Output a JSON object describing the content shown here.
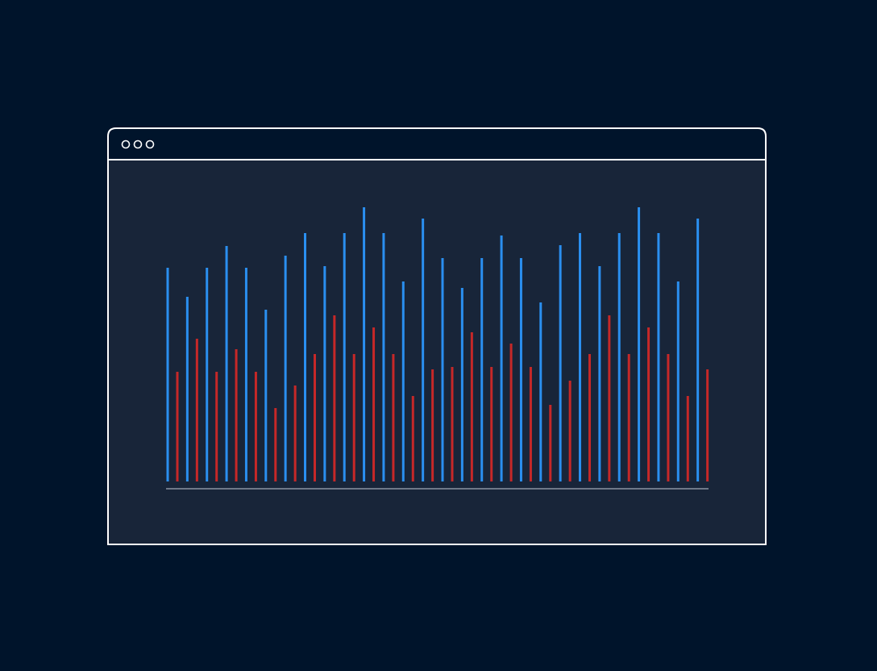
{
  "chart_data": {
    "type": "bar",
    "categories": [
      null,
      null,
      null,
      null,
      null,
      null,
      null,
      null,
      null,
      null,
      null,
      null,
      null,
      null,
      null,
      null,
      null,
      null,
      null,
      null,
      null,
      null,
      null,
      null,
      null,
      null,
      null,
      null
    ],
    "series": [
      {
        "color": "#2a8ff0",
        "values": [
          265,
          229,
          265,
          292,
          265,
          213,
          280,
          308,
          267,
          308,
          340,
          308,
          248,
          326,
          277,
          240,
          277,
          305,
          277,
          222,
          293,
          308,
          267,
          308,
          340,
          308,
          248,
          326
        ]
      },
      {
        "color": "#c62828",
        "values": [
          136,
          177,
          136,
          164,
          136,
          91,
          119,
          158,
          206,
          158,
          191,
          158,
          106,
          139,
          142,
          185,
          142,
          171,
          142,
          95,
          125,
          158,
          206,
          158,
          191,
          158,
          106,
          139
        ]
      }
    ],
    "ylim": [
      0,
      340
    ]
  }
}
